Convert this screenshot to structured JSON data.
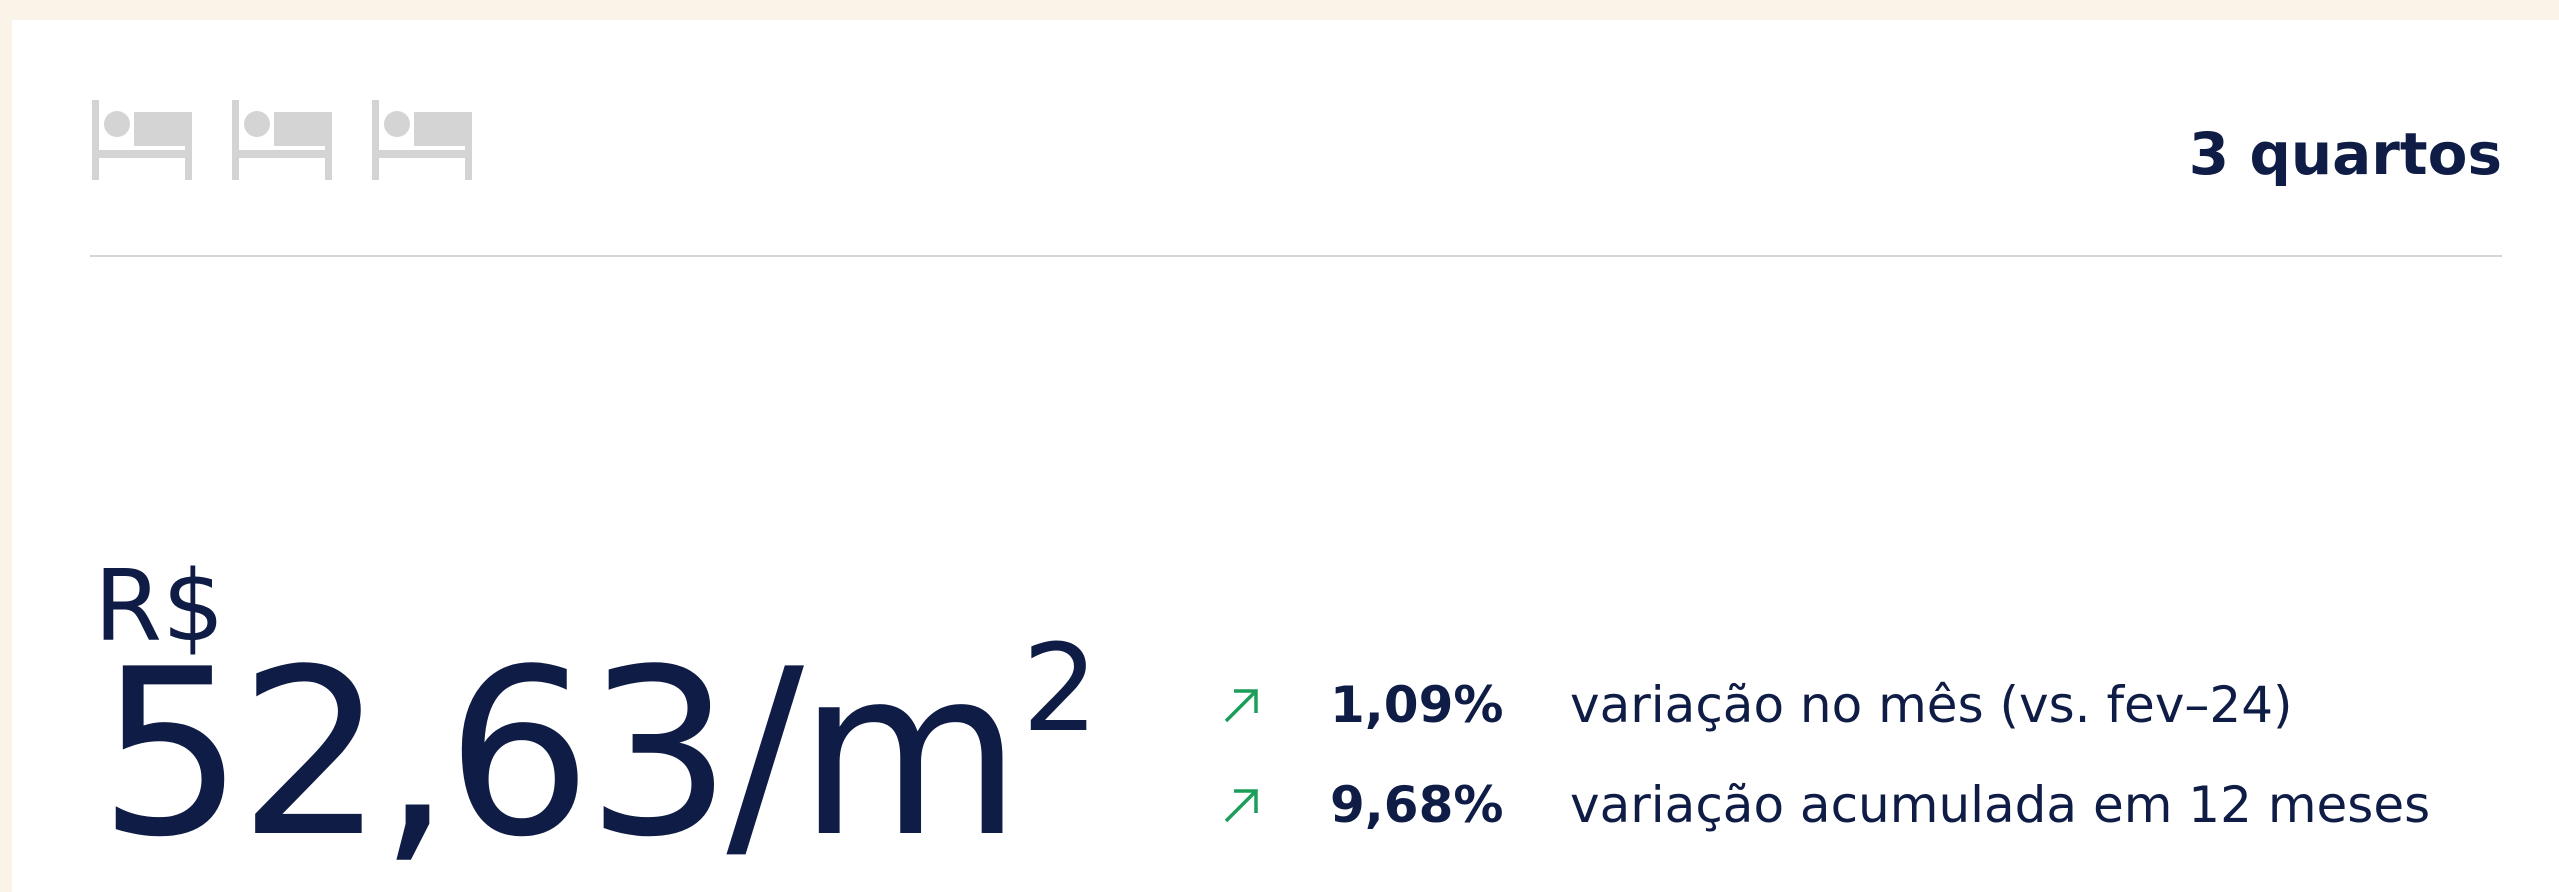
{
  "header": {
    "rooms": "3 quartos"
  },
  "price": {
    "currency": "R$",
    "amount": "52,63",
    "unit": "/m",
    "exponent": "2"
  },
  "stats": [
    {
      "value": "1,09%",
      "label": "variação no mês (vs. fev–24)"
    },
    {
      "value": "9,68%",
      "label": "variação acumulada em 12 meses"
    }
  ]
}
